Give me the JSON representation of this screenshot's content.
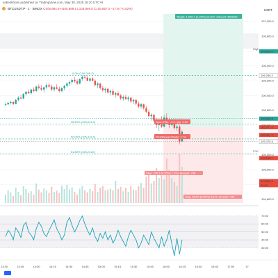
{
  "header": {
    "attribution": "saberikhomi published on TradingView.com, May 30, 2025 16:10 UTC+8",
    "symbol": "BTCUSDT.P · 1 · BINGX",
    "ohlc": "O105,884.9  H105,889.1  L105,869.5  C105,867.0  −17.9 (−0.02%)",
    "currency": "USDT"
  },
  "chart_data": {
    "type": "candlestick",
    "price_axis": {
      "ticks": [
        107000,
        106800,
        106600,
        106400,
        106200,
        106000,
        105800,
        105600,
        105400,
        105200,
        105000,
        104800,
        104600
      ],
      "tick_labels": [
        "107,000.0",
        "106,800.0",
        "106,600.0",
        "106,400.0",
        "106,200.0",
        "106,000.0",
        "105,800.0",
        "105,600.0",
        "105,400.0",
        "105,200.0",
        "105,000.0",
        "104,800.0",
        "104,600.0"
      ]
    },
    "time_axis": {
      "ticks": [
        "13:30",
        "13:45",
        "14:00",
        "14:15",
        "14:30",
        "14:45",
        "15:00",
        "15:15",
        "15:30",
        "15:45",
        "16:00",
        "16:15",
        "16:30",
        "16:45",
        "17:00",
        "17"
      ]
    },
    "candles": [
      {
        "t": 0,
        "o": 105870,
        "h": 105905,
        "l": 105855,
        "c": 105880
      },
      {
        "t": 1,
        "o": 105880,
        "h": 105920,
        "l": 105870,
        "c": 105900
      },
      {
        "t": 2,
        "o": 105900,
        "h": 105930,
        "l": 105880,
        "c": 105910
      },
      {
        "t": 3,
        "o": 105910,
        "h": 105925,
        "l": 105870,
        "c": 105885
      },
      {
        "t": 4,
        "o": 105885,
        "h": 105950,
        "l": 105880,
        "c": 105940
      },
      {
        "t": 5,
        "o": 105940,
        "h": 105990,
        "l": 105920,
        "c": 105970
      },
      {
        "t": 6,
        "o": 105970,
        "h": 106010,
        "l": 105950,
        "c": 105960
      },
      {
        "t": 7,
        "o": 105960,
        "h": 106030,
        "l": 105950,
        "c": 106020
      },
      {
        "t": 8,
        "o": 106020,
        "h": 106060,
        "l": 106000,
        "c": 106050
      },
      {
        "t": 9,
        "o": 106050,
        "h": 106080,
        "l": 106020,
        "c": 106030
      },
      {
        "t": 10,
        "o": 106030,
        "h": 106090,
        "l": 106010,
        "c": 106080
      },
      {
        "t": 11,
        "o": 106080,
        "h": 106110,
        "l": 106040,
        "c": 106060
      },
      {
        "t": 12,
        "o": 106060,
        "h": 106130,
        "l": 106050,
        "c": 106120
      },
      {
        "t": 13,
        "o": 106120,
        "h": 106150,
        "l": 106080,
        "c": 106100
      },
      {
        "t": 14,
        "o": 106100,
        "h": 106140,
        "l": 106060,
        "c": 106080
      },
      {
        "t": 15,
        "o": 106080,
        "h": 106120,
        "l": 106040,
        "c": 106110
      },
      {
        "t": 16,
        "o": 106110,
        "h": 106160,
        "l": 106090,
        "c": 106140
      },
      {
        "t": 17,
        "o": 106140,
        "h": 106170,
        "l": 106100,
        "c": 106120
      },
      {
        "t": 18,
        "o": 106120,
        "h": 106150,
        "l": 106060,
        "c": 106080
      },
      {
        "t": 19,
        "o": 106080,
        "h": 106130,
        "l": 106050,
        "c": 106110
      },
      {
        "t": 20,
        "o": 106110,
        "h": 106150,
        "l": 106080,
        "c": 106090
      },
      {
        "t": 21,
        "o": 106090,
        "h": 106120,
        "l": 106040,
        "c": 106060
      },
      {
        "t": 22,
        "o": 106060,
        "h": 106110,
        "l": 106040,
        "c": 106100
      },
      {
        "t": 23,
        "o": 106100,
        "h": 106140,
        "l": 106070,
        "c": 106130
      },
      {
        "t": 24,
        "o": 106130,
        "h": 106180,
        "l": 106110,
        "c": 106160
      },
      {
        "t": 25,
        "o": 106160,
        "h": 106200,
        "l": 106130,
        "c": 106180
      },
      {
        "t": 26,
        "o": 106180,
        "h": 106230,
        "l": 106150,
        "c": 106210
      },
      {
        "t": 27,
        "o": 106210,
        "h": 106250,
        "l": 106170,
        "c": 106190
      },
      {
        "t": 28,
        "o": 106190,
        "h": 106220,
        "l": 106140,
        "c": 106160
      },
      {
        "t": 29,
        "o": 106160,
        "h": 106230,
        "l": 106150,
        "c": 106220
      },
      {
        "t": 30,
        "o": 106220,
        "h": 106270,
        "l": 106200,
        "c": 106250
      },
      {
        "t": 31,
        "o": 106250,
        "h": 106275,
        "l": 106220,
        "c": 106240
      },
      {
        "t": 32,
        "o": 106240,
        "h": 106260,
        "l": 106190,
        "c": 106200
      },
      {
        "t": 33,
        "o": 106200,
        "h": 106240,
        "l": 106180,
        "c": 106230
      },
      {
        "t": 34,
        "o": 106230,
        "h": 106250,
        "l": 106190,
        "c": 106200
      },
      {
        "t": 35,
        "o": 106200,
        "h": 106220,
        "l": 106120,
        "c": 106140
      },
      {
        "t": 36,
        "o": 106140,
        "h": 106180,
        "l": 106100,
        "c": 106160
      },
      {
        "t": 37,
        "o": 106160,
        "h": 106170,
        "l": 106080,
        "c": 106100
      },
      {
        "t": 38,
        "o": 106100,
        "h": 106130,
        "l": 106050,
        "c": 106070
      },
      {
        "t": 39,
        "o": 106070,
        "h": 106110,
        "l": 106030,
        "c": 106090
      },
      {
        "t": 40,
        "o": 106090,
        "h": 106100,
        "l": 106020,
        "c": 106040
      },
      {
        "t": 41,
        "o": 106040,
        "h": 106080,
        "l": 106000,
        "c": 106060
      },
      {
        "t": 42,
        "o": 106060,
        "h": 106090,
        "l": 106000,
        "c": 106010
      },
      {
        "t": 43,
        "o": 106010,
        "h": 106050,
        "l": 105970,
        "c": 106030
      },
      {
        "t": 44,
        "o": 106030,
        "h": 106060,
        "l": 105990,
        "c": 106000
      },
      {
        "t": 45,
        "o": 106000,
        "h": 106020,
        "l": 105940,
        "c": 105960
      },
      {
        "t": 46,
        "o": 105960,
        "h": 106000,
        "l": 105930,
        "c": 105980
      },
      {
        "t": 47,
        "o": 105980,
        "h": 106010,
        "l": 105940,
        "c": 105950
      },
      {
        "t": 48,
        "o": 105950,
        "h": 105990,
        "l": 105920,
        "c": 105970
      },
      {
        "t": 49,
        "o": 105970,
        "h": 105980,
        "l": 105900,
        "c": 105920
      },
      {
        "t": 50,
        "o": 105920,
        "h": 105960,
        "l": 105880,
        "c": 105940
      },
      {
        "t": 51,
        "o": 105940,
        "h": 105950,
        "l": 105870,
        "c": 105890
      },
      {
        "t": 52,
        "o": 105890,
        "h": 105920,
        "l": 105830,
        "c": 105850
      },
      {
        "t": 53,
        "o": 105850,
        "h": 105900,
        "l": 105820,
        "c": 105880
      },
      {
        "t": 54,
        "o": 105880,
        "h": 105890,
        "l": 105810,
        "c": 105830
      },
      {
        "t": 55,
        "o": 105830,
        "h": 105860,
        "l": 105760,
        "c": 105780
      },
      {
        "t": 56,
        "o": 105780,
        "h": 105810,
        "l": 105700,
        "c": 105720
      },
      {
        "t": 57,
        "o": 105720,
        "h": 105760,
        "l": 105660,
        "c": 105740
      },
      {
        "t": 58,
        "o": 105740,
        "h": 105750,
        "l": 105640,
        "c": 105660
      },
      {
        "t": 59,
        "o": 105660,
        "h": 105700,
        "l": 105560,
        "c": 105600
      },
      {
        "t": 60,
        "o": 105600,
        "h": 105680,
        "l": 105520,
        "c": 105660
      },
      {
        "t": 61,
        "o": 105660,
        "h": 105720,
        "l": 105560,
        "c": 105580
      },
      {
        "t": 62,
        "o": 105580,
        "h": 105740,
        "l": 105570,
        "c": 105700
      },
      {
        "t": 63,
        "o": 105700,
        "h": 105760,
        "l": 105620,
        "c": 105650
      },
      {
        "t": 64,
        "o": 105650,
        "h": 105700,
        "l": 105560,
        "c": 105600
      },
      {
        "t": 65,
        "o": 105600,
        "h": 105690,
        "l": 105580,
        "c": 105670
      },
      {
        "t": 66,
        "o": 105670,
        "h": 105680,
        "l": 105540,
        "c": 105560
      },
      {
        "t": 67,
        "o": 105560,
        "h": 105600,
        "l": 105520,
        "c": 105580
      },
      {
        "t": 68,
        "o": 105580,
        "h": 105600,
        "l": 105340,
        "c": 105380
      },
      {
        "t": 69,
        "o": 105380,
        "h": 105530,
        "l": 105370,
        "c": 105510
      }
    ],
    "volume": [
      30,
      45,
      38,
      25,
      55,
      40,
      28,
      60,
      50,
      35,
      42,
      30,
      70,
      48,
      38,
      52,
      45,
      36,
      58,
      40,
      44,
      35,
      62,
      50,
      65,
      48,
      56,
      40,
      30,
      52,
      60,
      45,
      38,
      50,
      42,
      68,
      40,
      55,
      60,
      46,
      48,
      52,
      45,
      80,
      50,
      58,
      42,
      55,
      40,
      62,
      48,
      45,
      60,
      72,
      55,
      95,
      110,
      70,
      80,
      125,
      90,
      100,
      85,
      160,
      120,
      90,
      75,
      60,
      175,
      130
    ],
    "rsi": [
      44,
      52,
      48,
      40,
      55,
      50,
      43,
      58,
      62,
      50,
      46,
      40,
      54,
      62,
      57,
      48,
      44,
      52,
      58,
      65,
      54,
      48,
      40,
      46,
      62,
      68,
      58,
      50,
      56,
      64,
      70,
      60,
      52,
      46,
      55,
      44,
      38,
      48,
      42,
      50,
      40,
      46,
      36,
      42,
      52,
      44,
      38,
      32,
      44,
      52,
      46,
      40,
      30,
      36,
      46,
      40,
      34,
      50,
      42,
      36,
      30,
      44,
      32,
      40,
      52,
      35,
      20,
      42,
      22,
      40
    ],
    "rsi_axis": {
      "ticks": [
        70,
        60,
        50,
        40,
        30
      ],
      "tick_labels": [
        "70.00",
        "60.00",
        "50.00",
        "40.00",
        "30.00"
      ]
    },
    "fib_levels": [
      {
        "label": "0.0% (106,268.2)",
        "price": 106268.2
      },
      {
        "label": "38.20% (105,614.0)",
        "price": 105614.0
      },
      {
        "label": "50.00% (105,413.0)",
        "price": 105413.0
      },
      {
        "label": "61.80% (105,211.6)",
        "price": 105211.6
      }
    ],
    "annotations": {
      "target_box": "Target: 1,259.7 (1.20%) 12,547, Amount: 3508.80",
      "entry_box": "Open P&L: -4.9, Qty: 0.00",
      "pnl_box": "Risk/Reward Ratio: 1.74",
      "stop_box": "Stop: 105.3 (0.35%) 1,253, Amount: 730",
      "stop_box2": "Stop: 624.5 (0.59%) 6,244, Amount: 730",
      "low_label": "Low",
      "high_label": "High"
    },
    "price_labels": [
      {
        "text": "106,595.0",
        "color": "#26a69a",
        "price": 106595
      },
      {
        "text": "106,268.2",
        "color": "#ffffff",
        "price": 106268.2
      },
      {
        "text": "105,686.8",
        "color": "#26a69a",
        "price": 105686.8
      },
      {
        "text": "105,571.0",
        "color": "#e74c3c",
        "price": 105571.0
      },
      {
        "text": "105,467.0",
        "color": "#e74c3c",
        "price": 105467.0
      },
      {
        "text": "105,378.6",
        "color": "#ffffff",
        "price": 105378.6
      },
      {
        "text": "105,155.7",
        "color": "#e74c3c",
        "price": 105155.7
      },
      {
        "text": "104,843.8",
        "color": "#e74c3c",
        "price": 104843.8
      },
      {
        "text": "26.63",
        "color": "#e74c3c",
        "price": 104790
      }
    ]
  }
}
